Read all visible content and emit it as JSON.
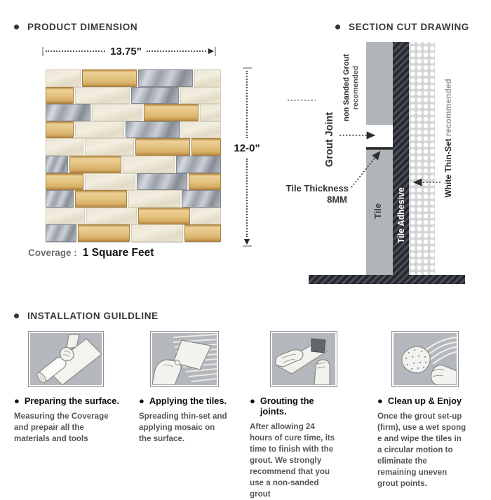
{
  "product_dimension": {
    "title": "PRODUCT DIMENSION",
    "width_label": "13.75\"",
    "height_label": "12-0\"",
    "coverage_label": "Coverage :",
    "coverage_value": "1 Square Feet"
  },
  "mosaic": {
    "colors": {
      "stone": "#eae4d4",
      "glass": "#dcb678",
      "metal": "#aab0b8"
    },
    "rows": [
      [
        [
          "s",
          50
        ],
        [
          "g",
          78
        ],
        [
          "m",
          78
        ],
        [
          "s",
          38
        ]
      ],
      [
        [
          "g",
          40
        ],
        [
          "s",
          78
        ],
        [
          "m",
          68
        ],
        [
          "s",
          58
        ]
      ],
      [
        [
          "m",
          64
        ],
        [
          "s",
          72
        ],
        [
          "g",
          78
        ],
        [
          "s",
          30
        ]
      ],
      [
        [
          "g",
          40
        ],
        [
          "s",
          70
        ],
        [
          "m",
          78
        ],
        [
          "s",
          56
        ]
      ],
      [
        [
          "s",
          54
        ],
        [
          "s",
          70
        ],
        [
          "g",
          78
        ],
        [
          "g",
          42
        ]
      ],
      [
        [
          "m",
          32
        ],
        [
          "g",
          74
        ],
        [
          "s",
          74
        ],
        [
          "m",
          64
        ]
      ],
      [
        [
          "g",
          54
        ],
        [
          "s",
          72
        ],
        [
          "m",
          72
        ],
        [
          "g",
          46
        ]
      ],
      [
        [
          "m",
          40
        ],
        [
          "g",
          74
        ],
        [
          "s",
          74
        ],
        [
          "m",
          56
        ]
      ],
      [
        [
          "s",
          56
        ],
        [
          "s",
          72
        ],
        [
          "g",
          74
        ],
        [
          "s",
          42
        ]
      ],
      [
        [
          "m",
          44
        ],
        [
          "g",
          74
        ],
        [
          "s",
          74
        ],
        [
          "g",
          52
        ]
      ]
    ]
  },
  "section_cut": {
    "title": "SECTION CUT DRAWING",
    "colors": {
      "tile": "#b2b5b8",
      "adhesive_dark": "#26292e",
      "adhesive_stripe": "#4b4f57",
      "thinset_bg": "#d4d4d4",
      "thinset_dot": "#ffffff"
    },
    "labels": {
      "grout_joint": "Grout Joint",
      "non_sanded": "non Sanded Grout",
      "non_sanded_sub": "recomended",
      "tile_thickness_line1": "Tile Thickness",
      "tile_thickness_line2": "8MM",
      "tile": "Tile",
      "tile_adhesive": "Tile Adhesive",
      "thinset_bold": "White Thin-Set",
      "thinset_gray": " recommended"
    }
  },
  "installation": {
    "title": "INSTALLATION GUILDLINE",
    "steps": [
      {
        "heading": "Preparing the surface.",
        "body": "Measuring the Coverage and prepair all the materials and tools"
      },
      {
        "heading": "Applying the tiles.",
        "body": "Spreading thin-set and applying mosaic on the surface."
      },
      {
        "heading": "Grouting the joints.",
        "body": "After allowing 24 hours of cure time, its time to finish with the grout. We strongly recommend that you use a non-sanded grout"
      },
      {
        "heading": "Clean up & Enjoy",
        "body": "Once the grout set-up (firm), use a wet spong e and wipe the tiles in a circular motion to eliminate the remaining uneven grout points."
      }
    ]
  }
}
